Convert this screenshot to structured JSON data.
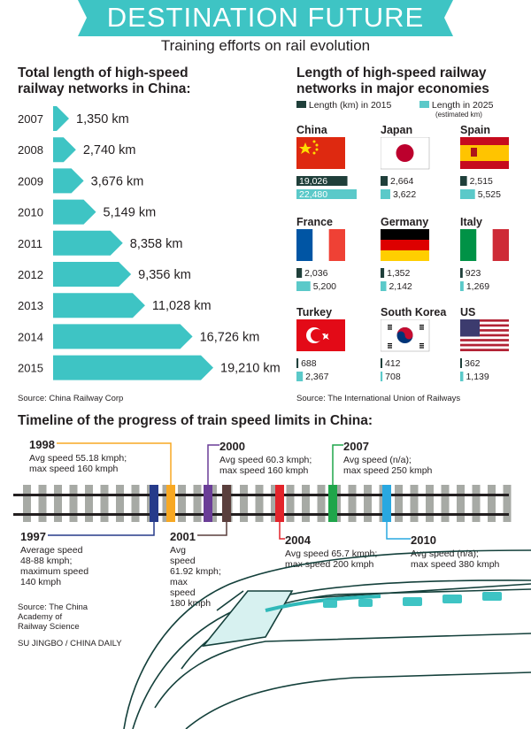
{
  "header": {
    "title": "DESTINATION FUTURE",
    "subtitle": "Training efforts on rail evolution"
  },
  "colors": {
    "teal": "#3ec4c4",
    "dark": "#1f3f3a",
    "light_teal": "#5bc9c9"
  },
  "china_chart": {
    "title_line1": "Total length of high-speed",
    "title_line2": "railway networks in China:",
    "source": "Source: China Railway Corp"
  },
  "chart_data": [
    {
      "type": "bar",
      "title": "Total length of high-speed railway networks in China:",
      "categories": [
        "2007",
        "2008",
        "2009",
        "2010",
        "2011",
        "2012",
        "2013",
        "2014",
        "2015"
      ],
      "values": [
        1350,
        2740,
        3676,
        5149,
        8358,
        9356,
        11028,
        16726,
        19210
      ],
      "value_labels": [
        "1,350 km",
        "2,740 km",
        "3,676 km",
        "5,149 km",
        "8,358 km",
        "9,356 km",
        "11,028 km",
        "16,726 km",
        "19,210 km"
      ],
      "orientation": "horizontal",
      "grid": false
    },
    {
      "type": "bar",
      "title": "Length of high-speed railway networks in major economies",
      "categories": [
        "China",
        "Japan",
        "Spain",
        "France",
        "Germany",
        "Italy",
        "Turkey",
        "South Korea",
        "US"
      ],
      "series": [
        {
          "name": "Length (km) in 2015",
          "values": [
            19026,
            2664,
            2515,
            2036,
            1352,
            923,
            688,
            412,
            362
          ]
        },
        {
          "name": "Length in 2025",
          "values": [
            22480,
            3622,
            5525,
            5200,
            2142,
            1269,
            2367,
            708,
            1139
          ]
        }
      ],
      "labels_2015": [
        "19,026",
        "2,664",
        "2,515",
        "2,036",
        "1,352",
        "923",
        "688",
        "412",
        "362"
      ],
      "labels_2025": [
        "22,480",
        "3,622",
        "5,525",
        "5,200",
        "2,142",
        "1,269",
        "2,367",
        "708",
        "1,139"
      ],
      "legend": "top"
    }
  ],
  "econ": {
    "title_line1": "Length of high-speed railway",
    "title_line2": "networks in major economies",
    "legend_2015": "Length (km) in 2015",
    "legend_2025": "Length in 2025",
    "legend_2025_note": "(estimated km)",
    "source": "Source: The International Union of Railways"
  },
  "timeline": {
    "title": "Timeline of the progress of train speed limits in China:",
    "events": [
      {
        "year": "1998",
        "lines": [
          "Avg speed 55.18 kmph;",
          "max speed 160 kmph"
        ],
        "color": "#f7a823"
      },
      {
        "year": "2000",
        "lines": [
          "Avg speed 60.3 kmph;",
          "max speed 160 kmph"
        ],
        "color": "#6a3d97"
      },
      {
        "year": "2007",
        "lines": [
          "Avg speed (n/a);",
          "max speed 250 kmph"
        ],
        "color": "#1fa54a"
      },
      {
        "year": "1997",
        "lines": [
          "Average speed",
          "48-88 kmph;",
          "maximum speed",
          "140 kmph"
        ],
        "color": "#263a8a"
      },
      {
        "year": "2001",
        "lines": [
          "Avg",
          "speed",
          "61.92 kmph;",
          "max",
          "speed",
          "180 kmph"
        ],
        "color": "#5a3f3d"
      },
      {
        "year": "2004",
        "lines": [
          "Avg speed 65.7 kmph;",
          "max speed 200 kmph"
        ],
        "color": "#e3242b"
      },
      {
        "year": "2010",
        "lines": [
          "Avg speed (n/a);",
          "max speed 380 kmph"
        ],
        "color": "#29a8e0"
      }
    ],
    "source_lines": [
      "Source: The China",
      "Academy of",
      "Railway Science"
    ],
    "credit": "SU JINGBO / CHINA DAILY"
  }
}
